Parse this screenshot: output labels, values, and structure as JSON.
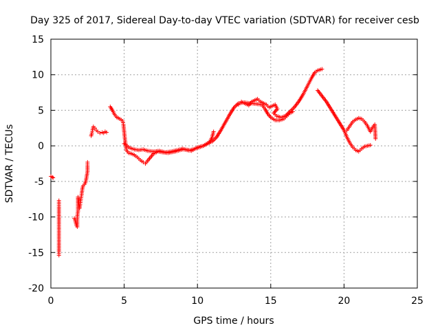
{
  "chart_data": {
    "type": "scatter",
    "title": "Day 325 of 2017, Sidereal Day-to-day VTEC variation (SDTVAR) for receiver cesb",
    "xlabel": "GPS time / hours",
    "ylabel": "SDTVAR / TECUs",
    "xlim": [
      0,
      25
    ],
    "ylim": [
      -20,
      15
    ],
    "xticks": [
      0,
      5,
      10,
      15,
      20,
      25
    ],
    "yticks": [
      -20,
      -15,
      -10,
      -5,
      0,
      5,
      10,
      15
    ],
    "xtick_labels": [
      "0",
      "5",
      "10",
      "15",
      "20",
      "25"
    ],
    "ytick_labels": [
      "-20",
      "-15",
      "-10",
      "-5",
      "0",
      "5",
      "10",
      "15"
    ],
    "grid": true,
    "marker": "+",
    "series": [
      {
        "name": "SDTVAR",
        "color": "#ff0000",
        "segments": [
          [
            [
              0.0,
              -4.3
            ],
            [
              0.1,
              -4.4
            ],
            [
              0.15,
              -4.5
            ]
          ],
          [
            [
              0.55,
              -7.7
            ],
            [
              0.55,
              -8.6
            ],
            [
              0.55,
              -11.0
            ],
            [
              0.55,
              -13.5
            ],
            [
              0.55,
              -14.9
            ],
            [
              0.55,
              -15.4
            ]
          ],
          [
            [
              1.6,
              -10.2
            ],
            [
              1.65,
              -10.4
            ],
            [
              1.7,
              -10.8
            ],
            [
              1.75,
              -11.2
            ],
            [
              1.8,
              -11.4
            ],
            [
              1.8,
              -10.0
            ],
            [
              1.85,
              -9.2
            ],
            [
              1.85,
              -8.6
            ],
            [
              1.85,
              -7.2
            ],
            [
              1.95,
              -8.8
            ],
            [
              2.0,
              -8.2
            ],
            [
              2.05,
              -7.5
            ],
            [
              2.1,
              -6.8
            ],
            [
              2.15,
              -6.0
            ],
            [
              2.2,
              -5.6
            ],
            [
              2.3,
              -5.4
            ],
            [
              2.35,
              -5.2
            ],
            [
              2.4,
              -4.8
            ],
            [
              2.45,
              -4.2
            ],
            [
              2.5,
              -3.6
            ],
            [
              2.5,
              -3.2
            ],
            [
              2.5,
              -2.8
            ],
            [
              2.5,
              -2.3
            ]
          ],
          [
            [
              2.75,
              1.4
            ],
            [
              2.8,
              1.8
            ],
            [
              2.85,
              2.3
            ],
            [
              2.9,
              2.7
            ],
            [
              3.0,
              2.5
            ],
            [
              3.1,
              2.2
            ],
            [
              3.2,
              2.0
            ],
            [
              3.35,
              1.8
            ],
            [
              3.5,
              1.9
            ],
            [
              3.6,
              1.8
            ],
            [
              3.7,
              2.0
            ],
            [
              3.8,
              1.9
            ]
          ],
          [
            [
              4.05,
              5.5
            ],
            [
              4.2,
              5.0
            ],
            [
              4.35,
              4.4
            ],
            [
              4.5,
              4.0
            ],
            [
              4.7,
              3.8
            ],
            [
              4.9,
              3.5
            ],
            [
              4.95,
              3.0
            ],
            [
              5.0,
              2.0
            ],
            [
              5.05,
              1.0
            ],
            [
              5.1,
              0.2
            ],
            [
              5.15,
              -0.6
            ],
            [
              5.3,
              -1.0
            ],
            [
              5.5,
              -1.1
            ],
            [
              5.7,
              -1.3
            ],
            [
              5.9,
              -1.6
            ],
            [
              6.1,
              -2.0
            ],
            [
              6.3,
              -2.3
            ],
            [
              6.45,
              -2.5
            ],
            [
              6.6,
              -2.1
            ],
            [
              6.8,
              -1.6
            ],
            [
              7.0,
              -1.1
            ],
            [
              7.3,
              -0.8
            ],
            [
              7.6,
              -0.9
            ],
            [
              8.0,
              -1.0
            ],
            [
              8.5,
              -0.8
            ],
            [
              9.0,
              -0.5
            ],
            [
              9.5,
              -0.6
            ],
            [
              10.0,
              -0.3
            ],
            [
              10.4,
              0.0
            ],
            [
              10.7,
              0.4
            ],
            [
              11.0,
              0.6
            ],
            [
              11.3,
              1.2
            ],
            [
              11.6,
              2.2
            ],
            [
              11.9,
              3.3
            ],
            [
              12.2,
              4.4
            ],
            [
              12.5,
              5.4
            ],
            [
              12.8,
              6.0
            ],
            [
              13.2,
              6.1
            ],
            [
              13.6,
              6.0
            ],
            [
              14.0,
              5.9
            ],
            [
              14.4,
              5.8
            ],
            [
              14.6,
              5.2
            ],
            [
              14.8,
              4.5
            ],
            [
              15.0,
              4.0
            ],
            [
              15.3,
              3.6
            ],
            [
              15.6,
              3.6
            ],
            [
              15.9,
              3.8
            ],
            [
              16.1,
              4.2
            ],
            [
              16.3,
              4.6
            ],
            [
              16.5,
              4.8
            ]
          ],
          [
            [
              5.0,
              0.3
            ],
            [
              5.2,
              0.0
            ],
            [
              5.4,
              -0.3
            ],
            [
              5.7,
              -0.5
            ],
            [
              6.0,
              -0.6
            ],
            [
              6.3,
              -0.5
            ],
            [
              6.6,
              -0.7
            ],
            [
              7.0,
              -0.8
            ],
            [
              7.4,
              -0.7
            ],
            [
              7.8,
              -0.9
            ],
            [
              8.2,
              -0.8
            ],
            [
              8.6,
              -0.6
            ],
            [
              9.0,
              -0.4
            ],
            [
              9.3,
              -0.6
            ],
            [
              9.6,
              -0.7
            ],
            [
              10.0,
              -0.2
            ],
            [
              10.4,
              0.0
            ],
            [
              10.8,
              0.4
            ],
            [
              11.0,
              1.2
            ],
            [
              11.1,
              2.0
            ]
          ],
          [
            [
              12.8,
              5.8
            ],
            [
              13.0,
              6.2
            ],
            [
              13.3,
              5.9
            ],
            [
              13.5,
              5.7
            ],
            [
              13.7,
              6.2
            ],
            [
              13.9,
              6.4
            ],
            [
              14.1,
              6.6
            ],
            [
              14.3,
              6.2
            ],
            [
              14.5,
              6.0
            ],
            [
              14.7,
              5.8
            ],
            [
              14.9,
              5.4
            ],
            [
              15.1,
              5.6
            ],
            [
              15.3,
              5.8
            ],
            [
              15.45,
              5.2
            ],
            [
              15.2,
              4.6
            ],
            [
              15.4,
              4.2
            ],
            [
              15.7,
              4.0
            ],
            [
              16.0,
              4.2
            ],
            [
              16.3,
              4.8
            ],
            [
              16.6,
              5.4
            ],
            [
              16.9,
              6.2
            ],
            [
              17.2,
              7.2
            ],
            [
              17.5,
              8.4
            ],
            [
              17.8,
              9.6
            ],
            [
              18.0,
              10.3
            ],
            [
              18.2,
              10.6
            ],
            [
              18.5,
              10.8
            ]
          ],
          [
            [
              18.2,
              7.8
            ],
            [
              18.5,
              7.0
            ],
            [
              18.8,
              6.2
            ],
            [
              19.1,
              5.2
            ],
            [
              19.4,
              4.2
            ],
            [
              19.7,
              3.2
            ],
            [
              20.0,
              2.2
            ],
            [
              20.2,
              1.2
            ],
            [
              20.4,
              0.4
            ],
            [
              20.6,
              -0.2
            ],
            [
              20.8,
              -0.6
            ],
            [
              21.0,
              -0.8
            ],
            [
              21.2,
              -0.4
            ],
            [
              21.4,
              -0.1
            ],
            [
              21.6,
              0.0
            ],
            [
              21.8,
              0.1
            ]
          ],
          [
            [
              20.2,
              2.2
            ],
            [
              20.4,
              2.8
            ],
            [
              20.6,
              3.4
            ],
            [
              20.8,
              3.7
            ],
            [
              21.0,
              3.9
            ],
            [
              21.2,
              3.8
            ],
            [
              21.4,
              3.4
            ],
            [
              21.6,
              2.8
            ],
            [
              21.8,
              2.0
            ],
            [
              21.95,
              2.6
            ],
            [
              22.1,
              3.0
            ],
            [
              22.15,
              1.0
            ]
          ]
        ]
      }
    ]
  }
}
